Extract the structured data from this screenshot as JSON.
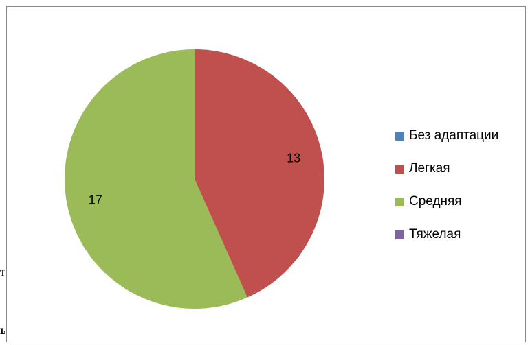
{
  "chart_data": {
    "type": "pie",
    "categories": [
      "Без адаптации",
      "Легкая",
      "Средняя",
      "Тяжелая"
    ],
    "values": [
      0,
      13,
      17,
      0
    ],
    "colors": [
      "#4f81bd",
      "#c0504d",
      "#9bbb59",
      "#8064a2"
    ],
    "data_labels": [
      "",
      "13",
      "17",
      ""
    ],
    "legend": "right"
  },
  "edge_fragments": [
    "ті",
    "ь"
  ]
}
